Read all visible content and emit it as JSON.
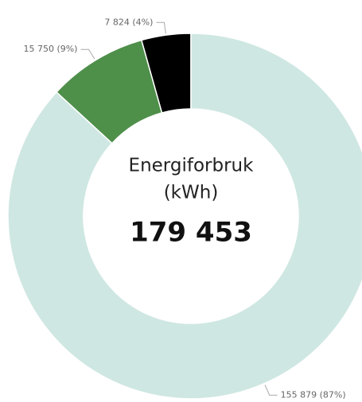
{
  "chart_data": {
    "type": "donut",
    "center_title": [
      "Energiforbruk",
      "(kWh)"
    ],
    "total": {
      "value": 179453,
      "label": "179 453"
    },
    "categories": [
      null,
      null,
      null
    ],
    "values": [
      155879,
      15750,
      7824
    ],
    "value_labels": [
      "155 879 (87%)",
      "15 750 (9%)",
      "7 824 (4%)"
    ],
    "colors": [
      "#cfe7e2",
      "#4e8f4a",
      "#000000"
    ]
  }
}
